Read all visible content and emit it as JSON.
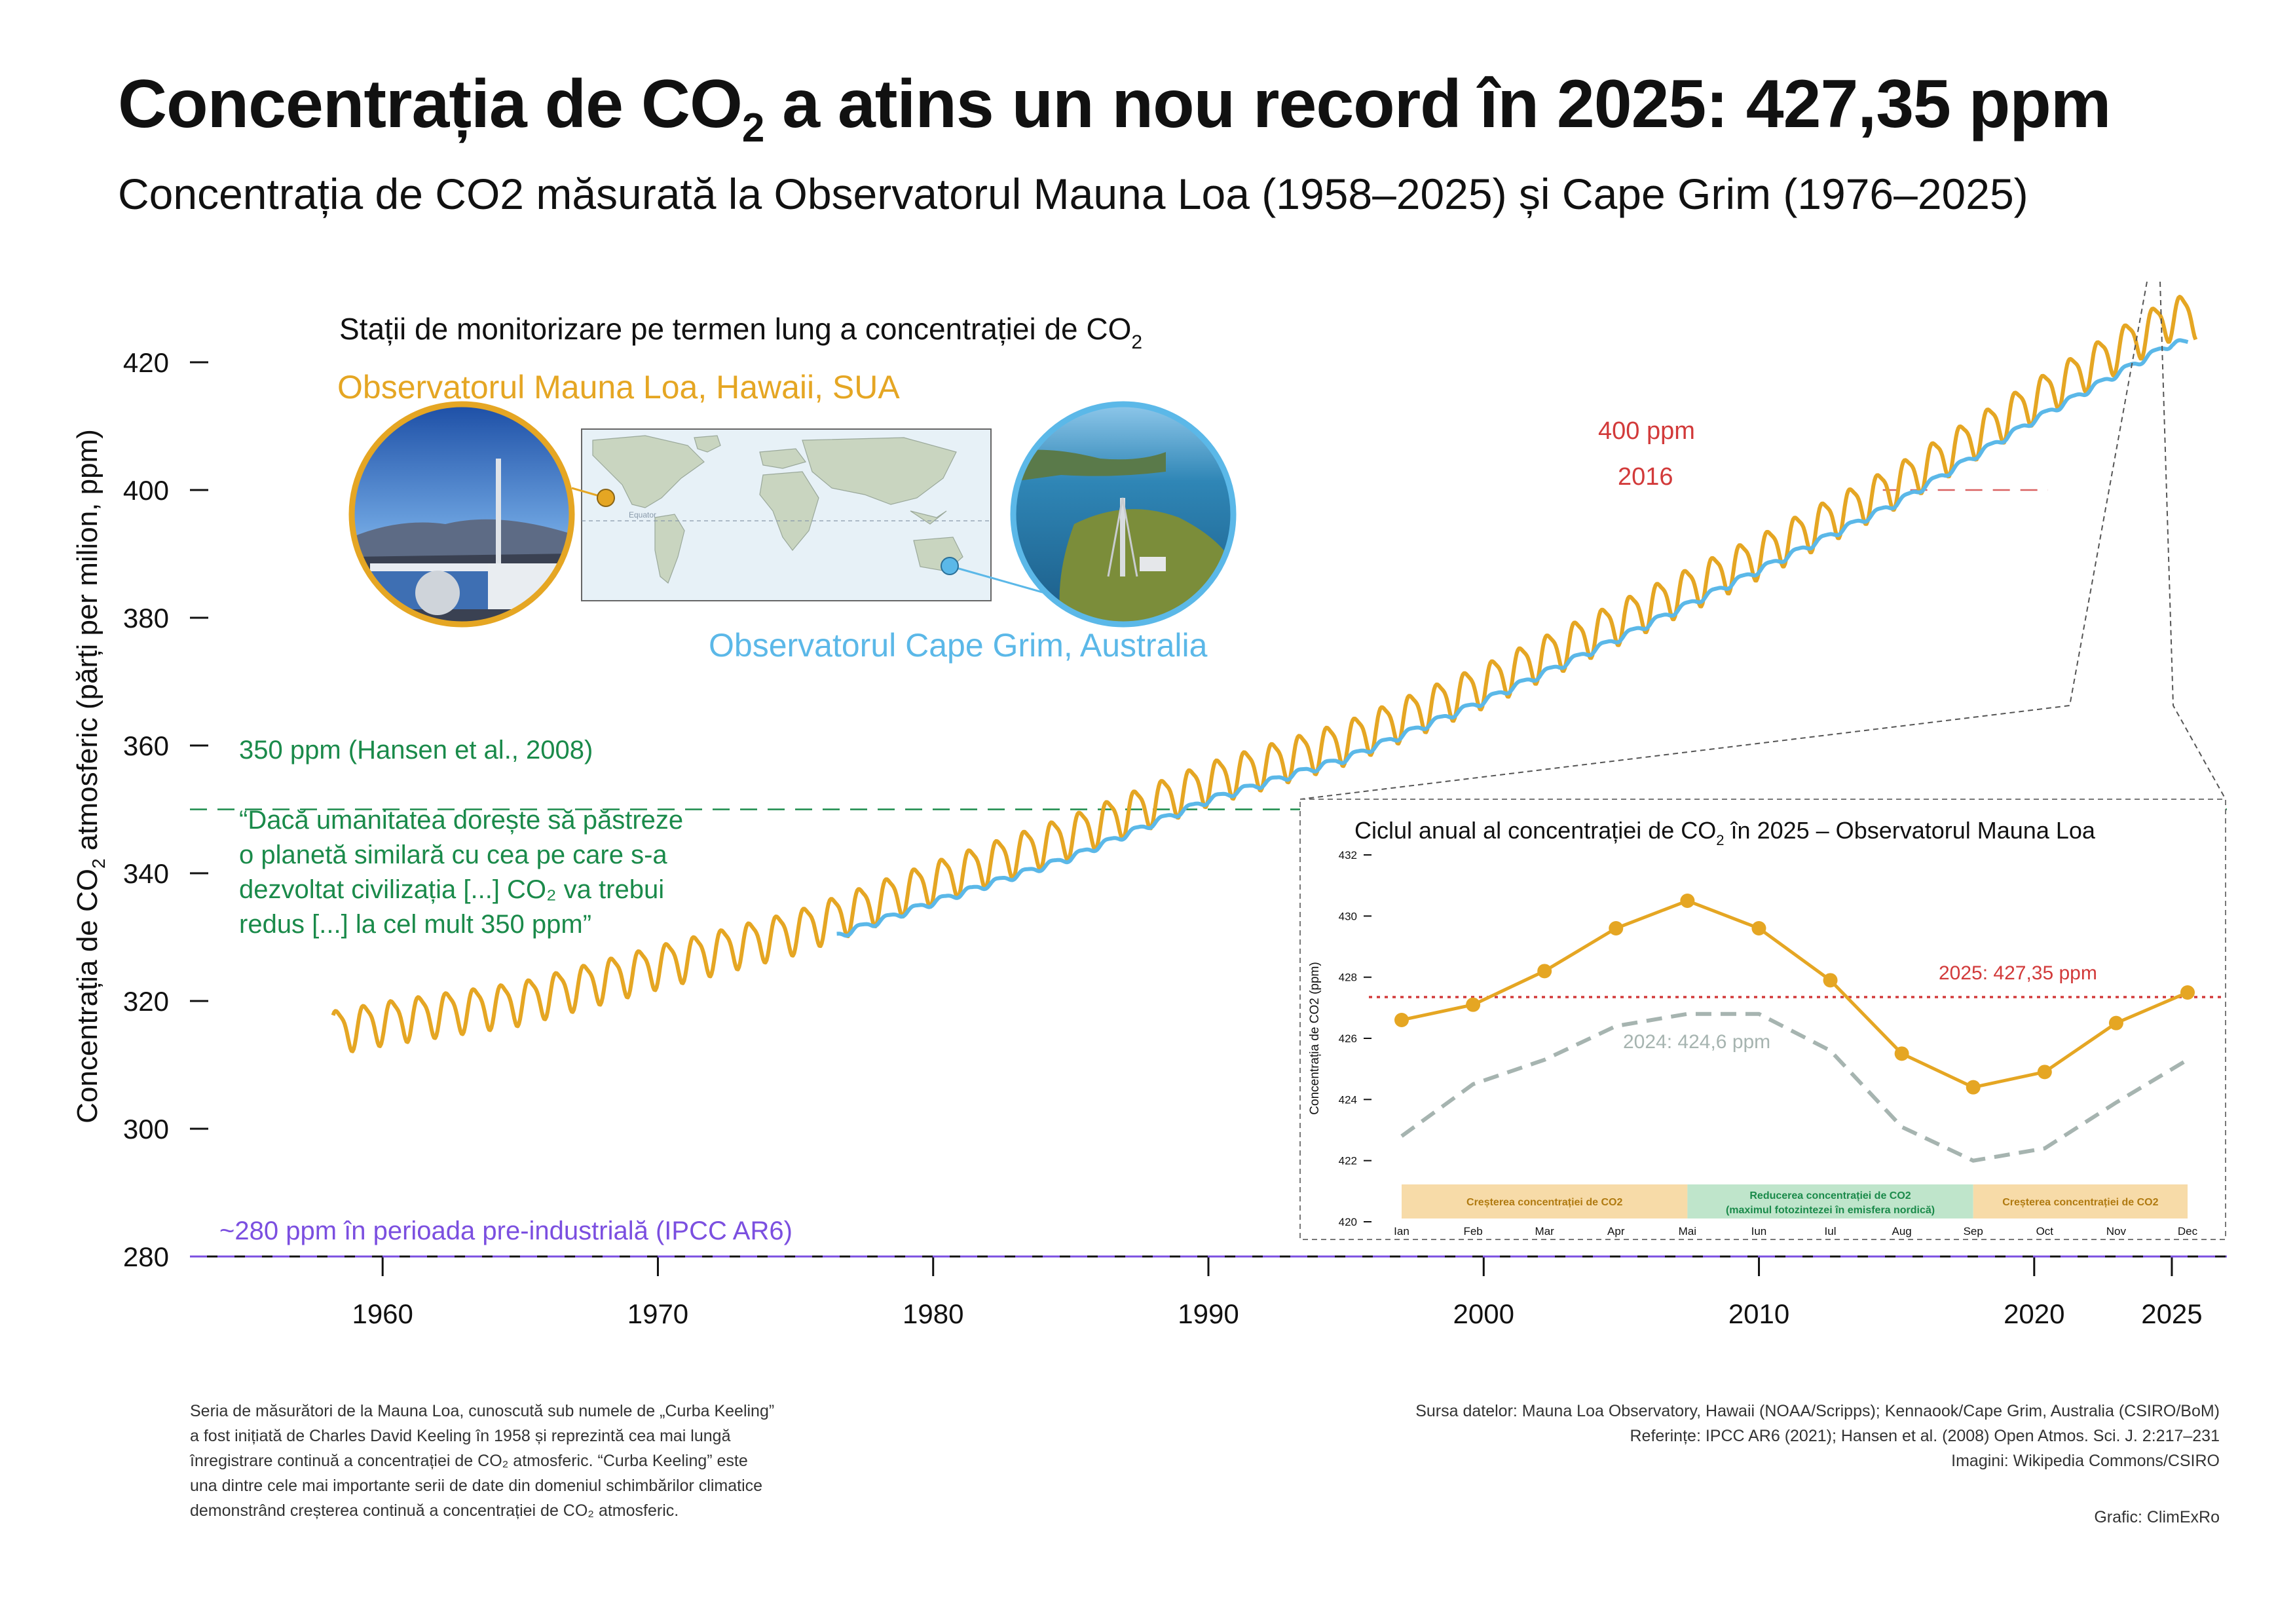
{
  "header": {
    "title_prefix": "Concentrația de CO",
    "title_sub": "2",
    "title_suffix": " a atins un nou record în 2025: 427,35 ppm",
    "subtitle": "Concentrația de CO2 măsurată la Observatorul Mauna Loa (1958–2025) și Cape Grim (1976–2025)"
  },
  "chart_data": [
    {
      "type": "line",
      "title": "Concentrația de CO2 măsurată la Observatorul Mauna Loa (1958–2025) și Cape Grim (1976–2025)",
      "ylabel_prefix": "Concentrația de CO",
      "ylabel_sub": "2",
      "ylabel_suffix": " atmosferic (părți per milion, ppm)",
      "xlabel": "",
      "xlim": [
        1953,
        2027
      ],
      "ylim": [
        280,
        428
      ],
      "x_ticks": [
        1960,
        1970,
        1980,
        1990,
        2000,
        2010,
        2020,
        2025
      ],
      "y_ticks": [
        280,
        300,
        320,
        340,
        360,
        380,
        400,
        420
      ],
      "series": [
        {
          "name": "Observatorul Mauna Loa, Hawaii, SUA",
          "color": "#E5A623",
          "start": 1958.2,
          "end": 2025.9,
          "seasonal_amplitude_ppm": 3.2,
          "trend_x": [
            1958,
            1960,
            1965,
            1970,
            1975,
            1980,
            1985,
            1990,
            1995,
            2000,
            2005,
            2010,
            2015,
            2020,
            2025
          ],
          "trend_y": [
            315.3,
            316.9,
            320.0,
            325.7,
            331.1,
            338.8,
            346.1,
            354.4,
            360.8,
            369.7,
            379.8,
            389.9,
            401.0,
            414.2,
            427.35
          ]
        },
        {
          "name": "Observatorul Cape Grim, Australia",
          "color": "#5BB8E8",
          "start": 1976.5,
          "end": 2025.6,
          "seasonal_amplitude_ppm": 0.5,
          "trend_x": [
            1976,
            1980,
            1985,
            1990,
            1995,
            2000,
            2005,
            2010,
            2015,
            2020,
            2025
          ],
          "trend_y": [
            329.5,
            335.5,
            342.5,
            351.5,
            358.0,
            367.0,
            377.0,
            387.5,
            398.0,
            411.0,
            423.0
          ]
        }
      ],
      "reference_lines": [
        {
          "value": 350,
          "label": "350 ppm (Hansen et al., 2008)",
          "color": "#1A8A4A"
        },
        {
          "value": 280,
          "label": "~280 ppm în perioada pre-industrială (IPCC AR6)",
          "color": "#7B4FE0"
        },
        {
          "value": 400,
          "label": "400 ppm",
          "sublabel": "2016",
          "color": "#D23A3A",
          "x_from": 2016
        }
      ],
      "quote": [
        "“Dacă umanitatea dorește să păstreze",
        "o planetă similară cu cea pe care s-a",
        "dezvoltat civilizația [...] CO₂ va trebui",
        "redus [...] la cel mult 350 ppm”"
      ]
    },
    {
      "type": "line",
      "title_prefix": "Ciclul anual al concentrației de CO",
      "title_sub": "2",
      "title_suffix": " în 2025 – Observatorul Mauna Loa",
      "ylabel": "Concentrația de CO2 (ppm)",
      "categories": [
        "Ian",
        "Feb",
        "Mar",
        "Apr",
        "Mai",
        "Iun",
        "Iul",
        "Aug",
        "Sep",
        "Oct",
        "Nov",
        "Dec"
      ],
      "ylim": [
        420,
        432
      ],
      "y_ticks": [
        420,
        422,
        424,
        426,
        428,
        430,
        432
      ],
      "series": [
        {
          "name": "2025",
          "color": "#E5A623",
          "values": [
            426.6,
            427.1,
            428.2,
            429.6,
            430.5,
            429.6,
            427.9,
            425.5,
            424.4,
            424.9,
            426.5,
            427.5
          ]
        },
        {
          "name": "2024",
          "color": "#A6B4B0",
          "values": [
            422.8,
            424.5,
            425.3,
            426.4,
            426.8,
            426.8,
            425.6,
            423.1,
            422.0,
            422.4,
            423.9,
            425.3
          ]
        }
      ],
      "annotations": [
        {
          "text": "2025: 427,35 ppm",
          "value": 427.35,
          "color": "#D23A3A"
        },
        {
          "text": "2024: 424,6 ppm",
          "color": "#A6B4B0"
        }
      ],
      "bands": [
        {
          "label": "Creșterea concentrației de CO2",
          "from": "Ian",
          "to": "Mai",
          "color": "#F7DBA8"
        },
        {
          "label": "Reducerea concentrației de CO2",
          "label2": "(maximul fotozintezei în emisfera nordică)",
          "from": "Mai",
          "to": "Sep",
          "color": "#BFE5CB"
        },
        {
          "label": "Creșterea concentrației  de CO2",
          "from": "Sep",
          "to": "Dec",
          "color": "#F7DBA8"
        }
      ]
    }
  ],
  "map_panel": {
    "title_prefix": "Stații de monitorizare pe termen lung a concentrației de CO",
    "title_sub": "2",
    "mauna_loa_label": "Observatorul Mauna Loa, Hawaii, SUA",
    "cape_grim_label": "Observatorul Cape Grim, Australia",
    "equator_label": "Equator"
  },
  "footer": {
    "left_lines": [
      "Seria de măsurători de la Mauna Loa, cunoscută sub numele de „Curba Keeling”",
      "a fost inițiată de Charles David Keeling în 1958 și reprezintă cea mai lungă",
      "înregistrare continuă a concentrației de CO₂ atmosferic. “Curba Keeling” este",
      "una dintre cele mai importante serii de date din domeniul schimbărilor climatice",
      "demonstrând creșterea continuă a concentrației de CO₂ atmosferic."
    ],
    "right_lines": [
      "Sursa datelor: Mauna Loa Observatory, Hawaii (NOAA/Scripps); Kennaook/Cape Grim, Australia (CSIRO/BoM)",
      "Referințe: IPCC AR6 (2021); Hansen et al. (2008) Open Atmos. Sci. J. 2:217–231",
      "Imagini: Wikipedia Commons/CSIRO"
    ],
    "credit": "Grafic: ClimExRo"
  },
  "colors": {
    "mauna_loa": "#E5A623",
    "cape_grim": "#5BB8E8",
    "hansen": "#1A8A4A",
    "preindustrial": "#7B4FE0",
    "threshold": "#D23A3A",
    "gray": "#A6B4B0"
  }
}
